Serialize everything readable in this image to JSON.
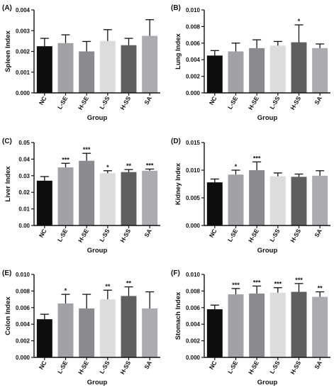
{
  "chart_data": [
    {
      "panel": "(A)",
      "type": "bar",
      "ylabel": "Spleen Index",
      "xlabel": "Group",
      "ylim": [
        0,
        0.004
      ],
      "yticks": [
        "0.000",
        "0.001",
        "0.002",
        "0.003",
        "0.004"
      ],
      "categories": [
        "NC",
        "L-SE",
        "H-SE",
        "L-SS",
        "H-SS",
        "SA"
      ],
      "values": [
        0.00225,
        0.0024,
        0.002,
        0.0025,
        0.0023,
        0.00275
      ],
      "errors": [
        0.00038,
        0.0004,
        0.00048,
        0.00055,
        0.00033,
        0.00078
      ],
      "significance": [
        "",
        "",
        "",
        "",
        "",
        ""
      ],
      "colors": [
        "#0d0d0d",
        "#a1a1a6",
        "#8a8a8f",
        "#dcdcdc",
        "#5f5f5f",
        "#ababb0"
      ]
    },
    {
      "panel": "(B)",
      "type": "bar",
      "ylabel": "Lung Index",
      "xlabel": "Group",
      "ylim": [
        0,
        0.01
      ],
      "yticks": [
        "0.000",
        "0.002",
        "0.004",
        "0.006",
        "0.008",
        "0.010"
      ],
      "categories": [
        "NC",
        "L-SE",
        "H-SE",
        "L-SS",
        "H-SS",
        "SA"
      ],
      "values": [
        0.0045,
        0.005,
        0.0054,
        0.0057,
        0.0061,
        0.0054
      ],
      "errors": [
        0.0006,
        0.001,
        0.001,
        0.0005,
        0.0021,
        0.0005
      ],
      "significance": [
        "",
        "",
        "",
        "",
        "*",
        ""
      ],
      "colors": [
        "#0d0d0d",
        "#a1a1a6",
        "#8a8a8f",
        "#dcdcdc",
        "#5f5f5f",
        "#ababb0"
      ]
    },
    {
      "panel": "(C)",
      "type": "bar",
      "ylabel": "Liver Index",
      "xlabel": "Group",
      "ylim": [
        0,
        0.05
      ],
      "yticks": [
        "0.00",
        "0.01",
        "0.02",
        "0.03",
        "0.04",
        "0.05"
      ],
      "categories": [
        "NC",
        "L-SE",
        "H-SE",
        "L-SS",
        "H-SS",
        "SA"
      ],
      "values": [
        0.027,
        0.035,
        0.039,
        0.0315,
        0.0322,
        0.033
      ],
      "errors": [
        0.0025,
        0.0025,
        0.0045,
        0.0015,
        0.0015,
        0.001
      ],
      "significance": [
        "",
        "***",
        "***",
        "*",
        "**",
        "***"
      ],
      "colors": [
        "#0d0d0d",
        "#a1a1a6",
        "#8a8a8f",
        "#dcdcdc",
        "#5f5f5f",
        "#ababb0"
      ]
    },
    {
      "panel": "(D)",
      "type": "bar",
      "ylabel": "Kidney Index",
      "xlabel": "Group",
      "ylim": [
        0,
        0.015
      ],
      "yticks": [
        "0.000",
        "0.005",
        "0.010",
        "0.015"
      ],
      "categories": [
        "NC",
        "L-SE",
        "H-SE",
        "L-SS",
        "H-SS",
        "SA"
      ],
      "values": [
        0.0078,
        0.0092,
        0.01,
        0.0089,
        0.0088,
        0.009
      ],
      "errors": [
        0.0006,
        0.0008,
        0.0015,
        0.0006,
        0.0005,
        0.0009
      ],
      "significance": [
        "",
        "*",
        "***",
        "",
        "",
        ""
      ],
      "colors": [
        "#0d0d0d",
        "#a1a1a6",
        "#8a8a8f",
        "#dcdcdc",
        "#5f5f5f",
        "#ababb0"
      ]
    },
    {
      "panel": "(E)",
      "type": "bar",
      "ylabel": "Colon Index",
      "xlabel": "Group",
      "ylim": [
        0,
        0.01
      ],
      "yticks": [
        "0.000",
        "0.002",
        "0.004",
        "0.006",
        "0.008",
        "0.010"
      ],
      "categories": [
        "NC",
        "L-SE",
        "H-SE",
        "L-SS",
        "H-SS",
        "SA"
      ],
      "values": [
        0.0046,
        0.0065,
        0.0059,
        0.007,
        0.0074,
        0.0059
      ],
      "errors": [
        0.0006,
        0.0011,
        0.0017,
        0.0011,
        0.0011,
        0.002
      ],
      "significance": [
        "",
        "*",
        "",
        "**",
        "**",
        ""
      ],
      "colors": [
        "#0d0d0d",
        "#a1a1a6",
        "#8a8a8f",
        "#dcdcdc",
        "#5f5f5f",
        "#ababb0"
      ]
    },
    {
      "panel": "(F)",
      "type": "bar",
      "ylabel": "Stomach Index",
      "xlabel": "Group",
      "ylim": [
        0,
        0.01
      ],
      "yticks": [
        "0.000",
        "0.002",
        "0.004",
        "0.006",
        "0.008",
        "0.010"
      ],
      "categories": [
        "NC",
        "L-SE",
        "H-SE",
        "L-SS",
        "H-SS",
        "SA"
      ],
      "values": [
        0.0058,
        0.0076,
        0.0077,
        0.0078,
        0.0079,
        0.0073
      ],
      "errors": [
        0.0005,
        0.0007,
        0.0009,
        0.0006,
        0.001,
        0.0006
      ],
      "significance": [
        "",
        "***",
        "***",
        "***",
        "***",
        "**"
      ],
      "colors": [
        "#0d0d0d",
        "#a1a1a6",
        "#8a8a8f",
        "#dcdcdc",
        "#5f5f5f",
        "#ababb0"
      ]
    }
  ]
}
